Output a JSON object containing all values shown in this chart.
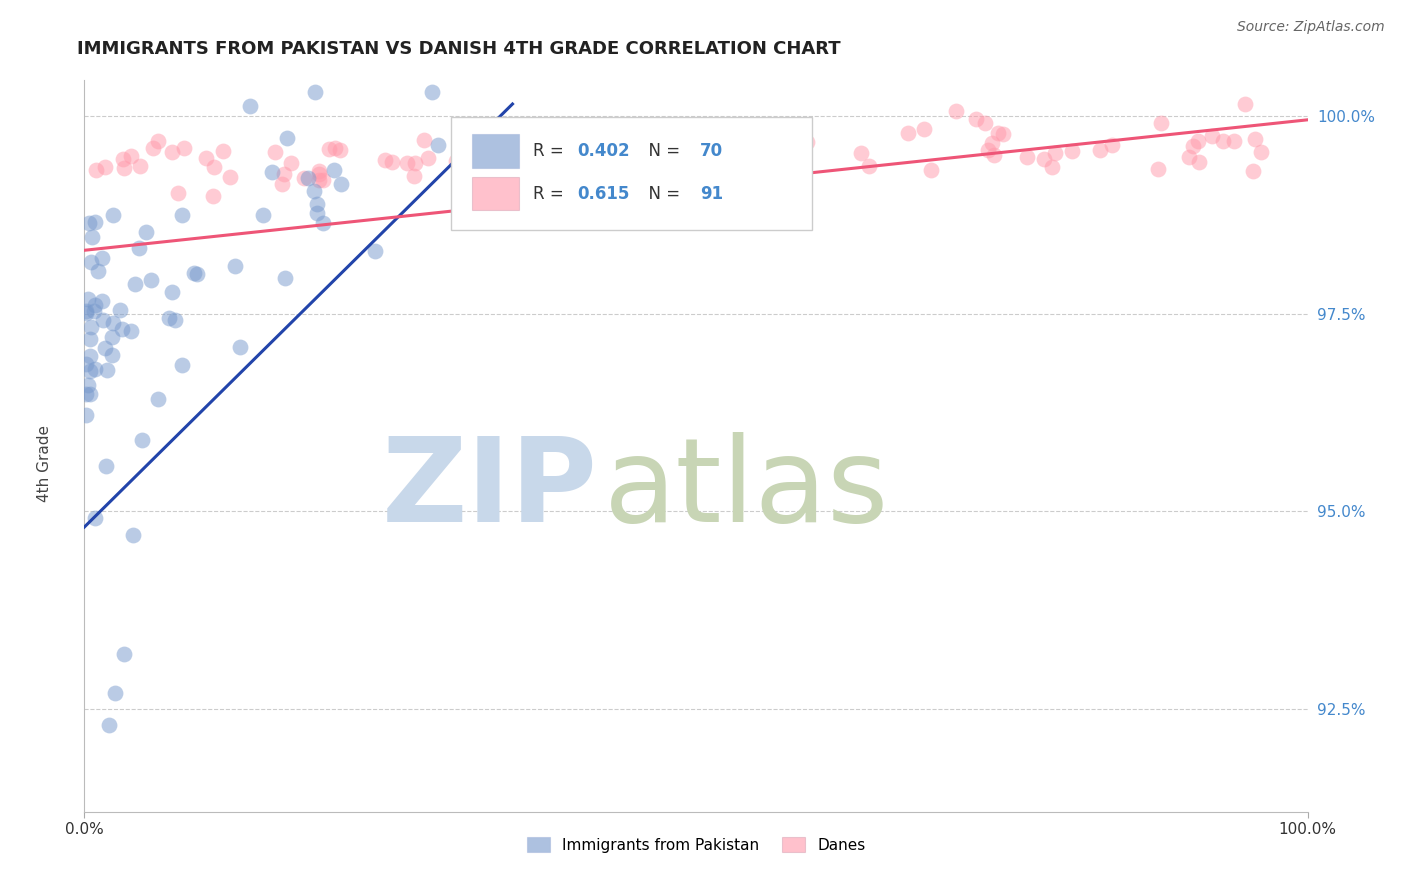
{
  "title": "IMMIGRANTS FROM PAKISTAN VS DANISH 4TH GRADE CORRELATION CHART",
  "source": "Source: ZipAtlas.com",
  "ylabel": "4th Grade",
  "ytick_labels": [
    "92.5%",
    "95.0%",
    "97.5%",
    "100.0%"
  ],
  "ytick_values": [
    92.5,
    95.0,
    97.5,
    100.0
  ],
  "ymin": 91.2,
  "ymax": 100.45,
  "xmin": 0.0,
  "xmax": 100.0,
  "blue_R": 0.402,
  "blue_N": 70,
  "pink_R": 0.615,
  "pink_N": 91,
  "blue_color": "#7799CC",
  "pink_color": "#FF99AA",
  "blue_line_color": "#2244AA",
  "pink_line_color": "#EE5577",
  "r_n_color": "#4488CC",
  "legend_label_blue": "Immigrants from Pakistan",
  "legend_label_pink": "Danes",
  "watermark_zip": "#C8D8EA",
  "watermark_atlas": "#C8D5B5",
  "grid_color": "#CCCCCC",
  "title_fontsize": 13,
  "source_fontsize": 10,
  "marker_size": 130,
  "seed": 42,
  "blue_line_x0": 0.0,
  "blue_line_x1": 35.0,
  "blue_line_y0": 94.8,
  "blue_line_y1": 100.15,
  "pink_line_x0": 0.0,
  "pink_line_x1": 100.0,
  "pink_line_y0": 98.3,
  "pink_line_y1": 99.95
}
